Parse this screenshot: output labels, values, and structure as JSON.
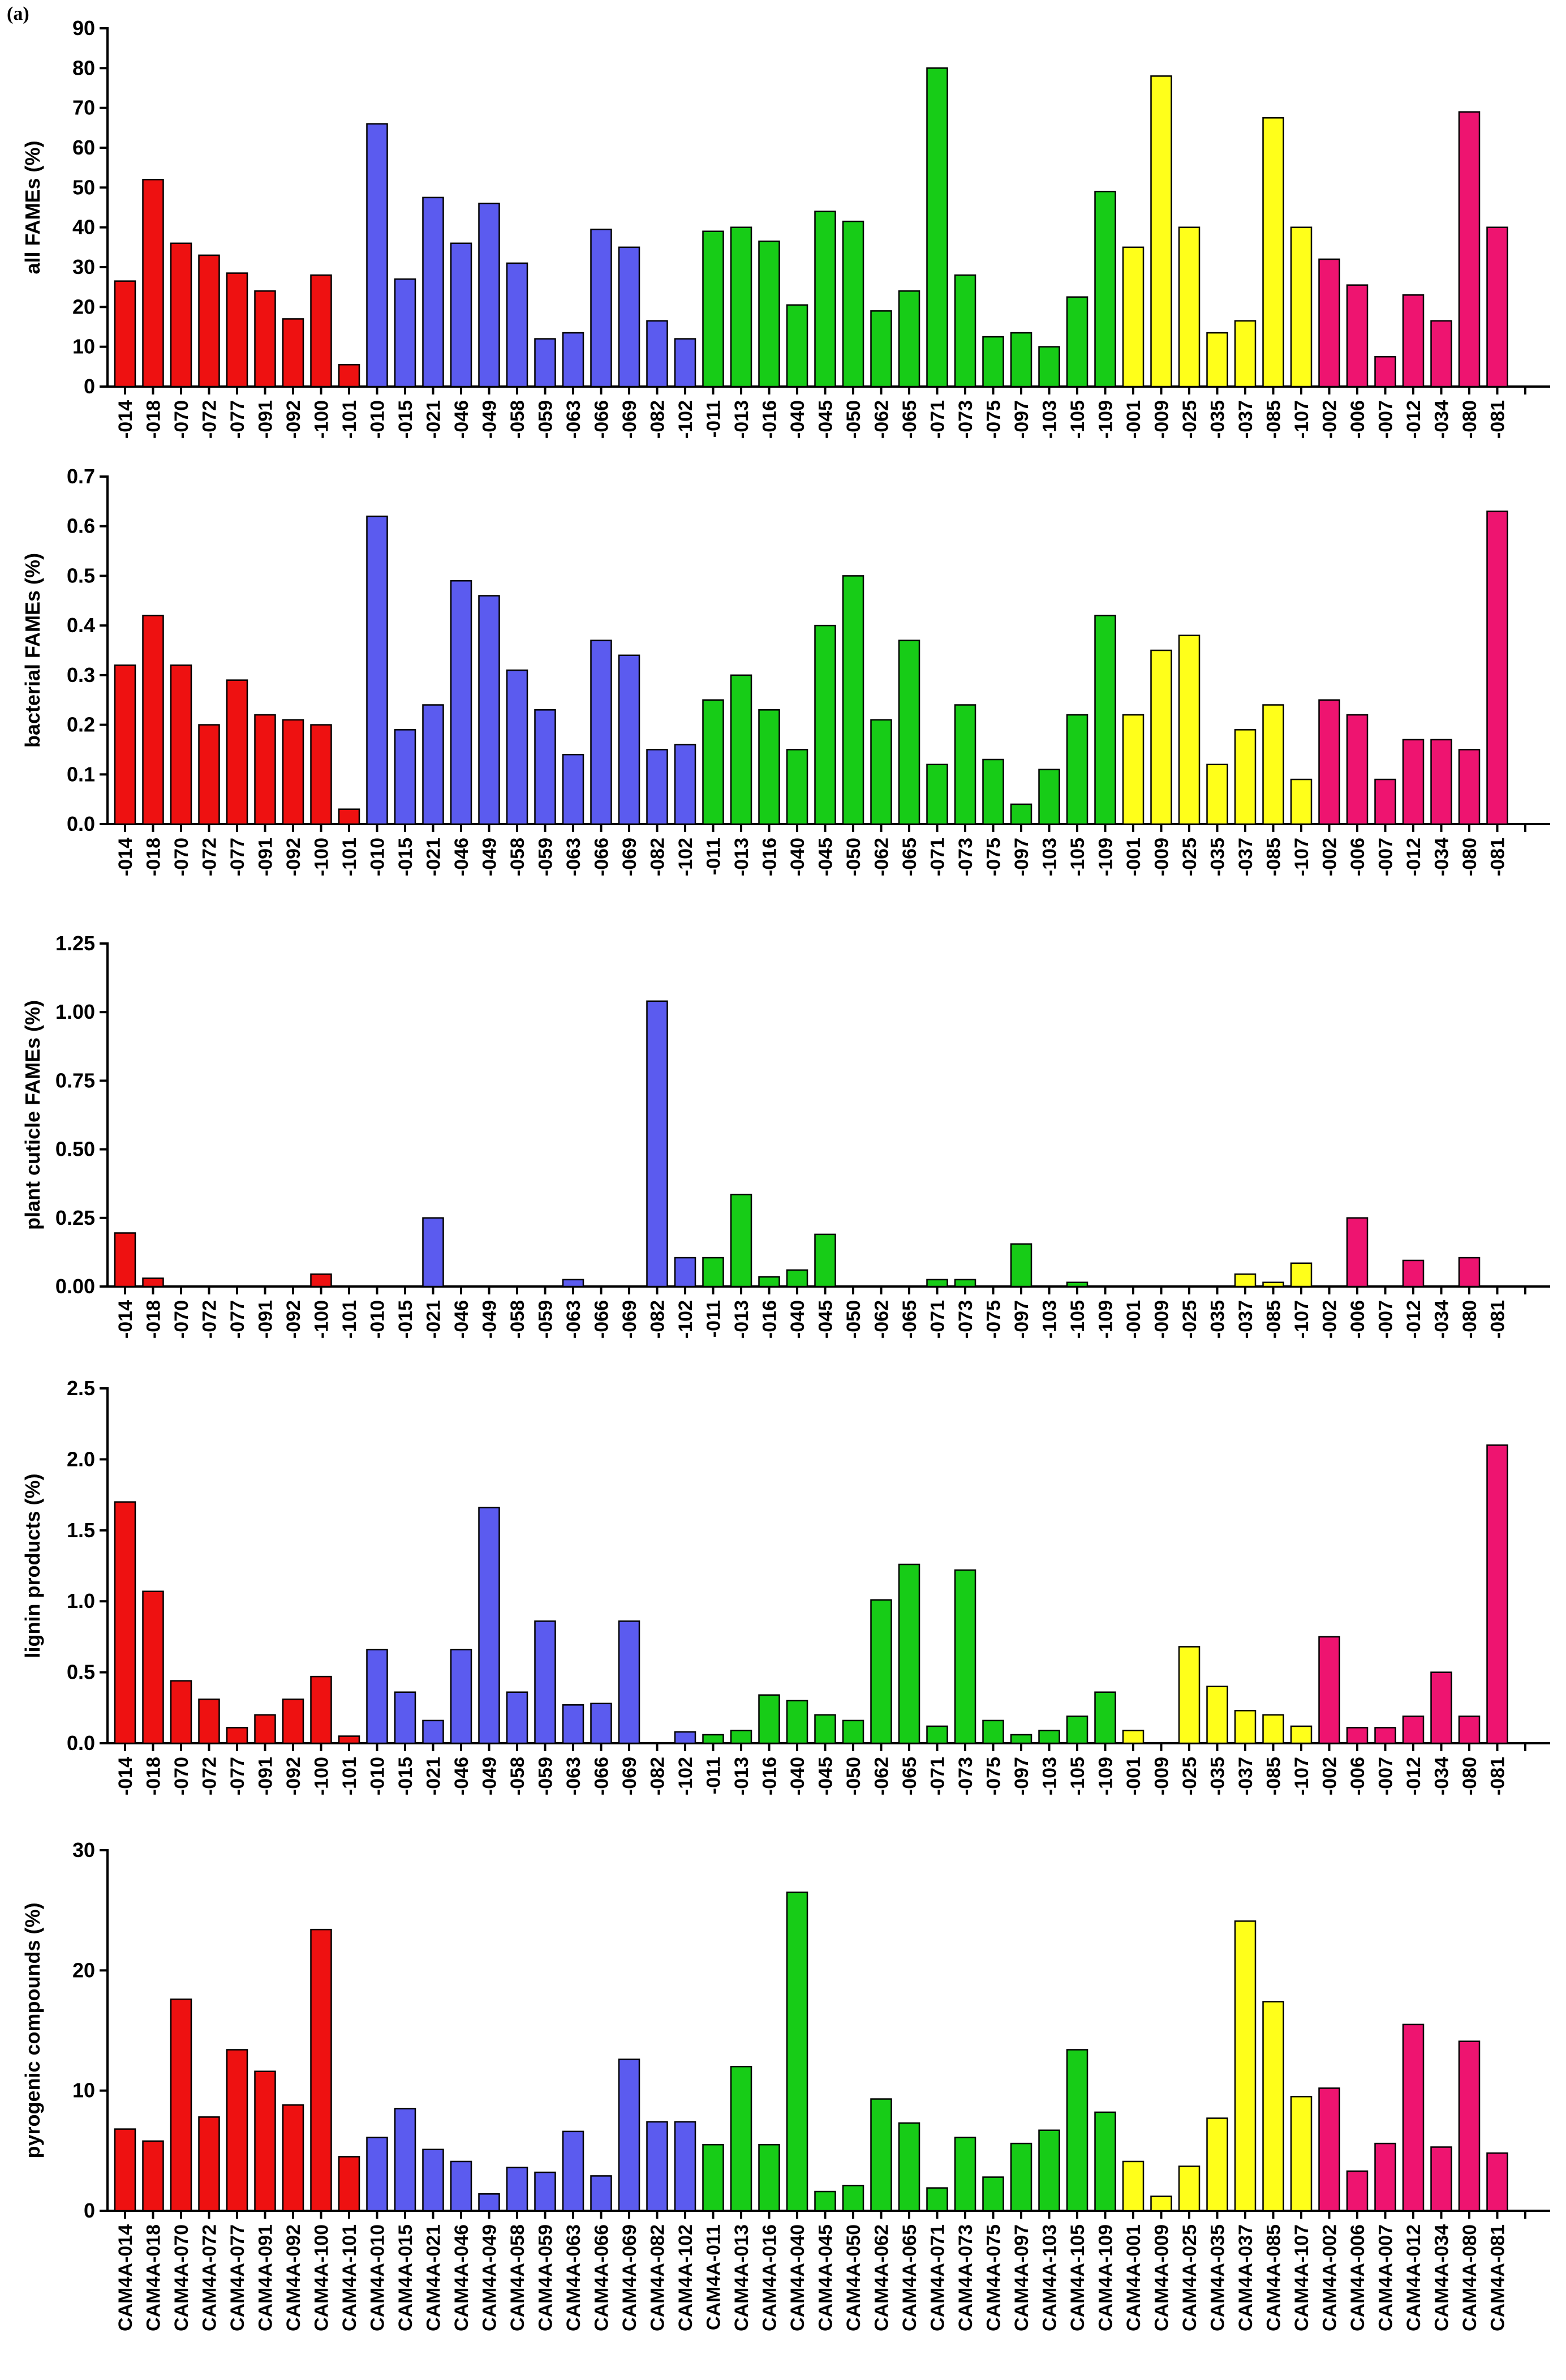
{
  "figure": {
    "panel_label": "(a)"
  },
  "colors": {
    "red": "#ee1111",
    "blue": "#5b5bef",
    "green": "#17cc17",
    "yellow": "#ffff1a",
    "magenta": "#ee1470",
    "axis": "#000000"
  },
  "chart_data": [
    {
      "type": "bar",
      "ylabel": "all FAMEs (%)",
      "ylim": [
        0,
        90
      ],
      "yticks": [
        "0",
        "10",
        "20",
        "30",
        "40",
        "50",
        "60",
        "70",
        "80",
        "90"
      ],
      "categories": [
        "-014",
        "-018",
        "-070",
        "-072",
        "-077",
        "-091",
        "-092",
        "-100",
        "-101",
        "-010",
        "-015",
        "-021",
        "-046",
        "-049",
        "-058",
        "-059",
        "-063",
        "-066",
        "-069",
        "-082",
        "-102",
        "-011",
        "-013",
        "-016",
        "-040",
        "-045",
        "-050",
        "-062",
        "-065",
        "-071",
        "-073",
        "-075",
        "-097",
        "-103",
        "-105",
        "-109",
        "-001",
        "-009",
        "-025",
        "-035",
        "-037",
        "-085",
        "-107",
        "-002",
        "-006",
        "-007",
        "-012",
        "-034",
        "-080",
        "-081"
      ],
      "groups": [
        "red",
        "red",
        "red",
        "red",
        "red",
        "red",
        "red",
        "red",
        "red",
        "blue",
        "blue",
        "blue",
        "blue",
        "blue",
        "blue",
        "blue",
        "blue",
        "blue",
        "blue",
        "blue",
        "blue",
        "green",
        "green",
        "green",
        "green",
        "green",
        "green",
        "green",
        "green",
        "green",
        "green",
        "green",
        "green",
        "green",
        "green",
        "green",
        "yellow",
        "yellow",
        "yellow",
        "yellow",
        "yellow",
        "yellow",
        "yellow",
        "magenta",
        "magenta",
        "magenta",
        "magenta",
        "magenta",
        "magenta",
        "magenta"
      ],
      "values": [
        26.5,
        52,
        36,
        33,
        28.5,
        24,
        17,
        28,
        5.5,
        66,
        27,
        47.5,
        36,
        46,
        31,
        12,
        13.5,
        39.5,
        35,
        16.5,
        12,
        39,
        40,
        36.5,
        20.5,
        44,
        41.5,
        19,
        24,
        80,
        28,
        12.5,
        13.5,
        10,
        22.5,
        49,
        35,
        78,
        40,
        13.5,
        16.5,
        67.5,
        40,
        32,
        25.5,
        7.5,
        23,
        16.5,
        69,
        40
      ]
    },
    {
      "type": "bar",
      "ylabel": "bacterial FAMEs (%)",
      "ylim": [
        0,
        0.7
      ],
      "yticks": [
        "0.0",
        "0.1",
        "0.2",
        "0.3",
        "0.4",
        "0.5",
        "0.6",
        "0.7"
      ],
      "categories": [
        "-014",
        "-018",
        "-070",
        "-072",
        "-077",
        "-091",
        "-092",
        "-100",
        "-101",
        "-010",
        "-015",
        "-021",
        "-046",
        "-049",
        "-058",
        "-059",
        "-063",
        "-066",
        "-069",
        "-082",
        "-102",
        "-011",
        "-013",
        "-016",
        "-040",
        "-045",
        "-050",
        "-062",
        "-065",
        "-071",
        "-073",
        "-075",
        "-097",
        "-103",
        "-105",
        "-109",
        "-001",
        "-009",
        "-025",
        "-035",
        "-037",
        "-085",
        "-107",
        "-002",
        "-006",
        "-007",
        "-012",
        "-034",
        "-080",
        "-081"
      ],
      "groups": [
        "red",
        "red",
        "red",
        "red",
        "red",
        "red",
        "red",
        "red",
        "red",
        "blue",
        "blue",
        "blue",
        "blue",
        "blue",
        "blue",
        "blue",
        "blue",
        "blue",
        "blue",
        "blue",
        "blue",
        "green",
        "green",
        "green",
        "green",
        "green",
        "green",
        "green",
        "green",
        "green",
        "green",
        "green",
        "green",
        "green",
        "green",
        "green",
        "yellow",
        "yellow",
        "yellow",
        "yellow",
        "yellow",
        "yellow",
        "yellow",
        "magenta",
        "magenta",
        "magenta",
        "magenta",
        "magenta",
        "magenta",
        "magenta"
      ],
      "values": [
        0.32,
        0.42,
        0.32,
        0.2,
        0.29,
        0.22,
        0.21,
        0.2,
        0.03,
        0.62,
        0.19,
        0.24,
        0.49,
        0.46,
        0.31,
        0.23,
        0.14,
        0.37,
        0.34,
        0.15,
        0.16,
        0.25,
        0.3,
        0.23,
        0.15,
        0.4,
        0.5,
        0.21,
        0.37,
        0.12,
        0.24,
        0.13,
        0.04,
        0.11,
        0.22,
        0.42,
        0.22,
        0.35,
        0.38,
        0.12,
        0.19,
        0.24,
        0.09,
        0.25,
        0.22,
        0.09,
        0.17,
        0.17,
        0.15,
        0.63
      ]
    },
    {
      "type": "bar",
      "ylabel": "plant cuticle FAMEs (%)",
      "ylim": [
        0,
        1.25
      ],
      "yticks": [
        "0.00",
        "0.25",
        "0.50",
        "0.75",
        "1.00",
        "1.25"
      ],
      "categories": [
        "-014",
        "-018",
        "-070",
        "-072",
        "-077",
        "-091",
        "-092",
        "-100",
        "-101",
        "-010",
        "-015",
        "-021",
        "-046",
        "-049",
        "-058",
        "-059",
        "-063",
        "-066",
        "-069",
        "-082",
        "-102",
        "-011",
        "-013",
        "-016",
        "-040",
        "-045",
        "-050",
        "-062",
        "-065",
        "-071",
        "-073",
        "-075",
        "-097",
        "-103",
        "-105",
        "-109",
        "-001",
        "-009",
        "-025",
        "-035",
        "-037",
        "-085",
        "-107",
        "-002",
        "-006",
        "-007",
        "-012",
        "-034",
        "-080",
        "-081"
      ],
      "groups": [
        "red",
        "red",
        "red",
        "red",
        "red",
        "red",
        "red",
        "red",
        "red",
        "blue",
        "blue",
        "blue",
        "blue",
        "blue",
        "blue",
        "blue",
        "blue",
        "blue",
        "blue",
        "blue",
        "blue",
        "green",
        "green",
        "green",
        "green",
        "green",
        "green",
        "green",
        "green",
        "green",
        "green",
        "green",
        "green",
        "green",
        "green",
        "green",
        "yellow",
        "yellow",
        "yellow",
        "yellow",
        "yellow",
        "yellow",
        "yellow",
        "magenta",
        "magenta",
        "magenta",
        "magenta",
        "magenta",
        "magenta",
        "magenta"
      ],
      "values": [
        0.195,
        0.03,
        0,
        0,
        0,
        0,
        0,
        0.045,
        0,
        0,
        0,
        0.25,
        0,
        0,
        0,
        0,
        0.025,
        0,
        0,
        1.04,
        0.105,
        0.105,
        0.335,
        0.035,
        0.06,
        0.19,
        0,
        0,
        0,
        0.025,
        0.025,
        0,
        0.155,
        0,
        0.015,
        0,
        0,
        0,
        0,
        0,
        0.045,
        0.015,
        0.085,
        0,
        0.25,
        0,
        0.095,
        0,
        0.105,
        0
      ]
    },
    {
      "type": "bar",
      "ylabel": "lignin products (%)",
      "ylim": [
        0,
        2.5
      ],
      "yticks": [
        "0.0",
        "0.5",
        "1.0",
        "1.5",
        "2.0",
        "2.5"
      ],
      "categories": [
        "-014",
        "-018",
        "-070",
        "-072",
        "-077",
        "-091",
        "-092",
        "-100",
        "-101",
        "-010",
        "-015",
        "-021",
        "-046",
        "-049",
        "-058",
        "-059",
        "-063",
        "-066",
        "-069",
        "-082",
        "-102",
        "-011",
        "-013",
        "-016",
        "-040",
        "-045",
        "-050",
        "-062",
        "-065",
        "-071",
        "-073",
        "-075",
        "-097",
        "-103",
        "-105",
        "-109",
        "-001",
        "-009",
        "-025",
        "-035",
        "-037",
        "-085",
        "-107",
        "-002",
        "-006",
        "-007",
        "-012",
        "-034",
        "-080",
        "-081"
      ],
      "groups": [
        "red",
        "red",
        "red",
        "red",
        "red",
        "red",
        "red",
        "red",
        "red",
        "blue",
        "blue",
        "blue",
        "blue",
        "blue",
        "blue",
        "blue",
        "blue",
        "blue",
        "blue",
        "blue",
        "blue",
        "green",
        "green",
        "green",
        "green",
        "green",
        "green",
        "green",
        "green",
        "green",
        "green",
        "green",
        "green",
        "green",
        "green",
        "green",
        "yellow",
        "yellow",
        "yellow",
        "yellow",
        "yellow",
        "yellow",
        "yellow",
        "magenta",
        "magenta",
        "magenta",
        "magenta",
        "magenta",
        "magenta",
        "magenta"
      ],
      "values": [
        1.7,
        1.07,
        0.44,
        0.31,
        0.11,
        0.2,
        0.31,
        0.47,
        0.05,
        0.66,
        0.36,
        0.16,
        0.66,
        1.66,
        0.36,
        0.86,
        0.27,
        0.28,
        0.86,
        0,
        0.08,
        0.06,
        0.09,
        0.34,
        0.3,
        0.2,
        0.16,
        1.01,
        1.26,
        0.12,
        1.22,
        0.16,
        0.06,
        0.09,
        0.19,
        0.36,
        0.09,
        0,
        0.68,
        0.4,
        0.23,
        0.2,
        0.12,
        0.75,
        0.11,
        0.11,
        0.19,
        0.5,
        0.19,
        2.1
      ]
    },
    {
      "type": "bar",
      "ylabel": "pyrogenic compounds (%)",
      "ylim": [
        0,
        30
      ],
      "yticks": [
        "0",
        "10",
        "20",
        "30"
      ],
      "categories": [
        "CAM4A-014",
        "CAM4A-018",
        "CAM4A-070",
        "CAM4A-072",
        "CAM4A-077",
        "CAM4A-091",
        "CAM4A-092",
        "CAM4A-100",
        "CAM4A-101",
        "CAM4A-010",
        "CAM4A-015",
        "CAM4A-021",
        "CAM4A-046",
        "CAM4A-049",
        "CAM4A-058",
        "CAM4A-059",
        "CAM4A-063",
        "CAM4A-066",
        "CAM4A-069",
        "CAM4A-082",
        "CAM4A-102",
        "CAM4A-011",
        "CAM4A-013",
        "CAM4A-016",
        "CAM4A-040",
        "CAM4A-045",
        "CAM4A-050",
        "CAM4A-062",
        "CAM4A-065",
        "CAM4A-071",
        "CAM4A-073",
        "CAM4A-075",
        "CAM4A-097",
        "CAM4A-103",
        "CAM4A-105",
        "CAM4A-109",
        "CAM4A-001",
        "CAM4A-009",
        "CAM4A-025",
        "CAM4A-035",
        "CAM4A-037",
        "CAM4A-085",
        "CAM4A-107",
        "CAM4A-002",
        "CAM4A-006",
        "CAM4A-007",
        "CAM4A-012",
        "CAM4A-034",
        "CAM4A-080",
        "CAM4A-081"
      ],
      "groups": [
        "red",
        "red",
        "red",
        "red",
        "red",
        "red",
        "red",
        "red",
        "red",
        "blue",
        "blue",
        "blue",
        "blue",
        "blue",
        "blue",
        "blue",
        "blue",
        "blue",
        "blue",
        "blue",
        "blue",
        "green",
        "green",
        "green",
        "green",
        "green",
        "green",
        "green",
        "green",
        "green",
        "green",
        "green",
        "green",
        "green",
        "green",
        "green",
        "yellow",
        "yellow",
        "yellow",
        "yellow",
        "yellow",
        "yellow",
        "yellow",
        "magenta",
        "magenta",
        "magenta",
        "magenta",
        "magenta",
        "magenta",
        "magenta"
      ],
      "values": [
        6.8,
        5.8,
        17.6,
        7.8,
        13.4,
        11.6,
        8.8,
        23.4,
        4.5,
        6.1,
        8.5,
        5.1,
        4.1,
        1.4,
        3.6,
        3.2,
        6.6,
        2.9,
        12.6,
        7.4,
        7.4,
        5.5,
        12,
        5.5,
        26.5,
        1.6,
        2.1,
        9.3,
        7.3,
        1.9,
        6.1,
        2.8,
        5.6,
        6.7,
        13.4,
        8.2,
        4.1,
        1.2,
        3.7,
        7.7,
        24.1,
        17.4,
        9.5,
        10.2,
        3.3,
        5.6,
        15.5,
        5.3,
        14.1,
        4.8
      ]
    }
  ]
}
